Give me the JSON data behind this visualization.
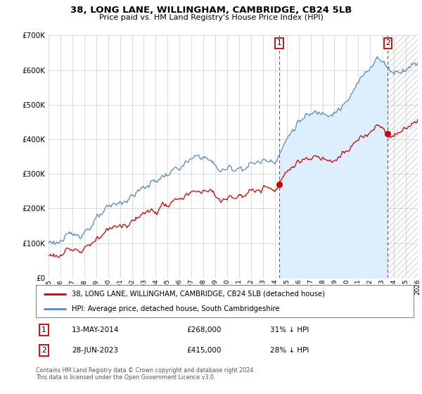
{
  "title": "38, LONG LANE, WILLINGHAM, CAMBRIDGE, CB24 5LB",
  "subtitle": "Price paid vs. HM Land Registry's House Price Index (HPI)",
  "legend_line1": "38, LONG LANE, WILLINGHAM, CAMBRIDGE, CB24 5LB (detached house)",
  "legend_line2": "HPI: Average price, detached house, South Cambridgeshire",
  "footnote1": "Contains HM Land Registry data © Crown copyright and database right 2024.",
  "footnote2": "This data is licensed under the Open Government Licence v3.0.",
  "purchase1_date": "13-MAY-2014",
  "purchase1_price": "£268,000",
  "purchase1_hpi": "31% ↓ HPI",
  "purchase1_year": 2014.37,
  "purchase1_value": 268000,
  "purchase2_date": "28-JUN-2023",
  "purchase2_price": "£415,000",
  "purchase2_hpi": "28% ↓ HPI",
  "purchase2_year": 2023.49,
  "purchase2_value": 415000,
  "red_color": "#cc0000",
  "blue_color": "#5588bb",
  "blue_fill_color": "#ddeeff",
  "hatch_color": "#aaaaaa",
  "background_color": "#ffffff",
  "grid_color": "#cccccc",
  "ylim": [
    0,
    700000
  ],
  "xlim_start": 1995,
  "xlim_end": 2026,
  "yticks": [
    0,
    100000,
    200000,
    300000,
    400000,
    500000,
    600000,
    700000
  ],
  "xtick_labels": [
    "1995",
    "1996",
    "1997",
    "1998",
    "1999",
    "2000",
    "2001",
    "2002",
    "2003",
    "2004",
    "2005",
    "2006",
    "2007",
    "2008",
    "2009",
    "2010",
    "2011",
    "2012",
    "2013",
    "2014",
    "2015",
    "2016",
    "2017",
    "2018",
    "2019",
    "2020",
    "2021",
    "2022",
    "2023",
    "2024",
    "2025",
    "2026"
  ]
}
